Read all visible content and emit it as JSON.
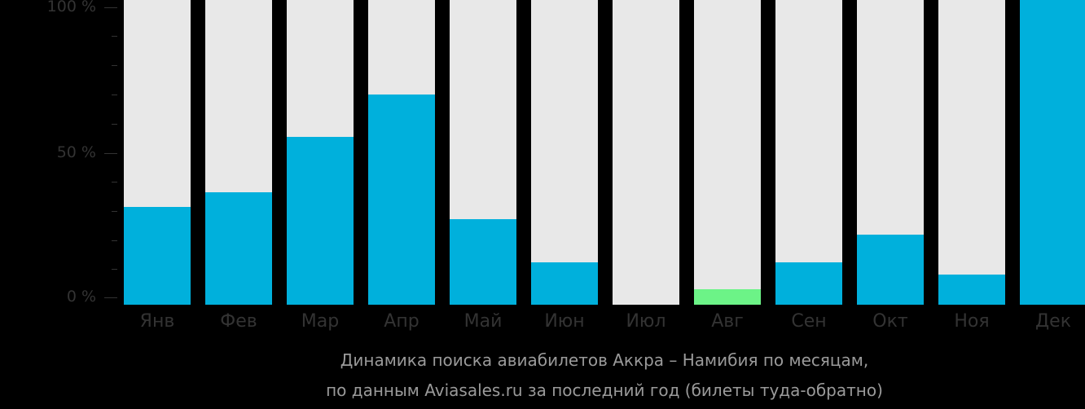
{
  "chart_data": {
    "type": "bar",
    "title": "Динамика поиска авиабилетов Аккра – Намибия по месяцам,",
    "subtitle": "по данным Aviasales.ru за последний год (билеты туда-обратно)",
    "xlabel": "",
    "ylabel": "",
    "ylim": [
      0,
      100
    ],
    "yticks": [
      "100 %",
      "50 %",
      "0 %"
    ],
    "categories": [
      "Янв",
      "Фев",
      "Мар",
      "Апр",
      "Май",
      "Июн",
      "Июл",
      "Авг",
      "Сен",
      "Окт",
      "Ноя",
      "Дек"
    ],
    "values": [
      32,
      37,
      55,
      69,
      28,
      14,
      0,
      5,
      14,
      23,
      10,
      100
    ],
    "highlight_index": 7,
    "colors": {
      "bar": "#00b0dc",
      "highlight": "#6cf387",
      "track": "#e8e8e8",
      "background": "#000000"
    },
    "grid": false,
    "legend": null
  }
}
